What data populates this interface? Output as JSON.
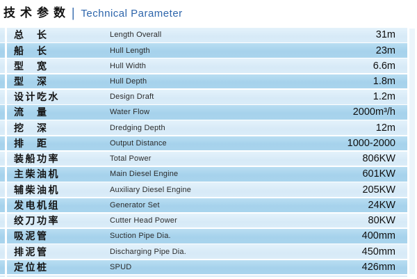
{
  "header": {
    "title_cn": "技术参数",
    "separator": "|",
    "title_en": "Technical Parameter",
    "accent_color": "#2d65ab"
  },
  "table": {
    "colors": {
      "row_light": "#d9ebf7",
      "row_dark": "#a8d3ec"
    },
    "rows": [
      {
        "cn": "总　长",
        "en": "Length Overall",
        "value": "31m"
      },
      {
        "cn": "船　长",
        "en": "Hull Length",
        "value": "23m"
      },
      {
        "cn": "型　宽",
        "en": "Hull Width",
        "value": "6.6m"
      },
      {
        "cn": "型　深",
        "en": "Hull Depth",
        "value": "1.8m"
      },
      {
        "cn": "设计吃水",
        "en": "Design Draft",
        "value": "1.2m"
      },
      {
        "cn": "流　量",
        "en": "Water Flow",
        "value": "2000m³/h"
      },
      {
        "cn": "挖　深",
        "en": "Dredging Depth",
        "value": "12m"
      },
      {
        "cn": "排　距",
        "en": "Output Distance",
        "value": "1000-2000"
      },
      {
        "cn": "装船功率",
        "en": "Total Power",
        "value": "806KW"
      },
      {
        "cn": "主柴油机",
        "en": "Main Diesel Engine",
        "value": "601KW"
      },
      {
        "cn": "辅柴油机",
        "en": "Auxiliary Diesel Engine",
        "value": "205KW"
      },
      {
        "cn": "发电机组",
        "en": "Generator Set",
        "value": "24KW"
      },
      {
        "cn": "绞刀功率",
        "en": "Cutter Head Power",
        "value": "80KW"
      },
      {
        "cn": "吸泥管",
        "en": "Suction Pipe Dia.",
        "value": "400mm"
      },
      {
        "cn": "排泥管",
        "en": "Discharging Pipe Dia.",
        "value": "450mm"
      },
      {
        "cn": "定位桩",
        "en": "SPUD",
        "value": "426mm"
      }
    ]
  }
}
